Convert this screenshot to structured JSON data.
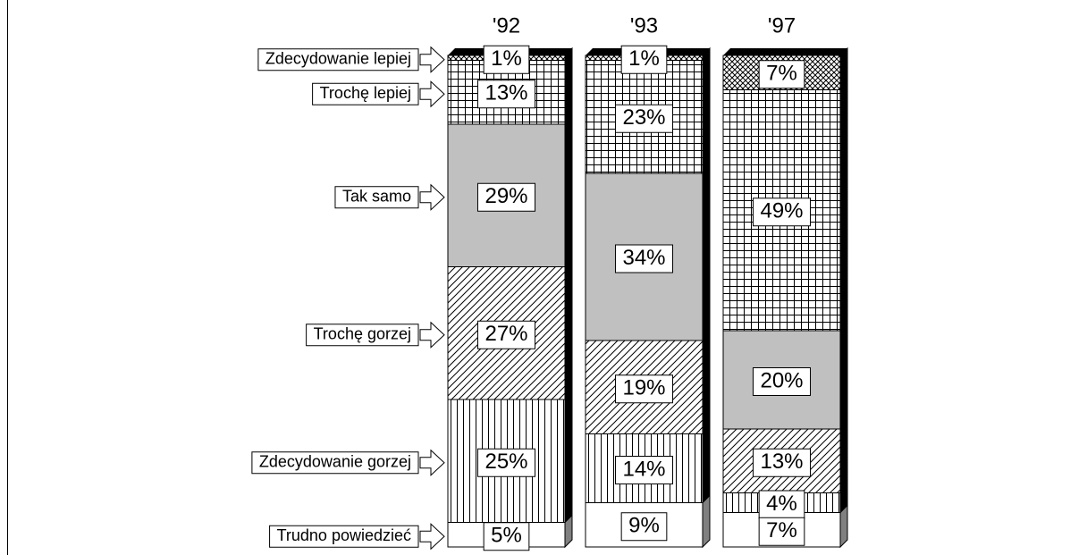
{
  "chart_data": {
    "type": "stacked_bar",
    "categories": [
      "'92",
      "'93",
      "'97"
    ],
    "series": [
      {
        "name": "Zdecydowanie lepiej",
        "color": "#ffffff",
        "values": [
          1,
          1,
          7
        ],
        "value_labels": [
          "1%",
          "1%",
          "7%"
        ]
      },
      {
        "name": "Trochę lepiej",
        "color": "#ffffff",
        "values": [
          13,
          23,
          49
        ],
        "value_labels": [
          "13%",
          "23%",
          "49%"
        ]
      },
      {
        "name": "Tak samo",
        "color": "#c0c0c0",
        "values": [
          29,
          34,
          20
        ],
        "value_labels": [
          "29%",
          "34%",
          "20%"
        ]
      },
      {
        "name": "Trochę gorzej",
        "color": "#ffffff",
        "values": [
          27,
          19,
          13
        ],
        "value_labels": [
          "27%",
          "19%",
          "13%"
        ]
      },
      {
        "name": "Zdecydowanie gorzej",
        "color": "#ffffff",
        "values": [
          25,
          14,
          4
        ],
        "value_labels": [
          "25%",
          "14%",
          "4%"
        ]
      },
      {
        "name": "Trudno powiedzieć",
        "color": "#ffffff",
        "values": [
          5,
          9,
          7
        ],
        "value_labels": [
          "5%",
          "9%",
          "7%"
        ]
      }
    ]
  }
}
